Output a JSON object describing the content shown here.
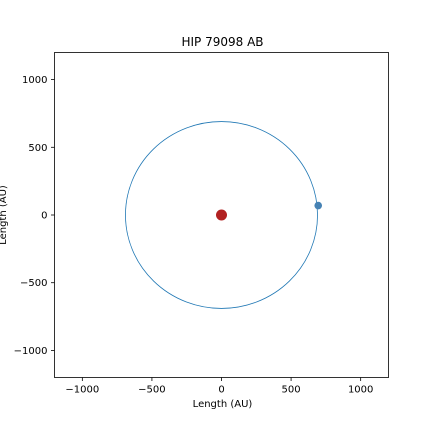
{
  "chart_data": {
    "type": "scatter",
    "title": "HIP 79098 AB",
    "xlabel": "Length (AU)",
    "ylabel": "Length (AU)",
    "xlim": [
      -1200,
      1200
    ],
    "ylim": [
      -1200,
      1200
    ],
    "xticks": [
      -1000,
      -500,
      0,
      500,
      1000
    ],
    "yticks": [
      -1000,
      -500,
      0,
      500,
      1000
    ],
    "xtick_labels": [
      "−1000",
      "−500",
      "0",
      "500",
      "1000"
    ],
    "ytick_labels": [
      "−1000",
      "−500",
      "0",
      "500",
      "1000"
    ],
    "grid": false,
    "legend": "none",
    "orbit": {
      "center": [
        0,
        0
      ],
      "radius": 690,
      "color": "#1f77b4"
    },
    "points": [
      {
        "x": 0,
        "y": 0,
        "color": "#b22222",
        "role": "primary"
      },
      {
        "x": 695,
        "y": 70,
        "color": "#4682b4",
        "role": "companion"
      }
    ]
  }
}
